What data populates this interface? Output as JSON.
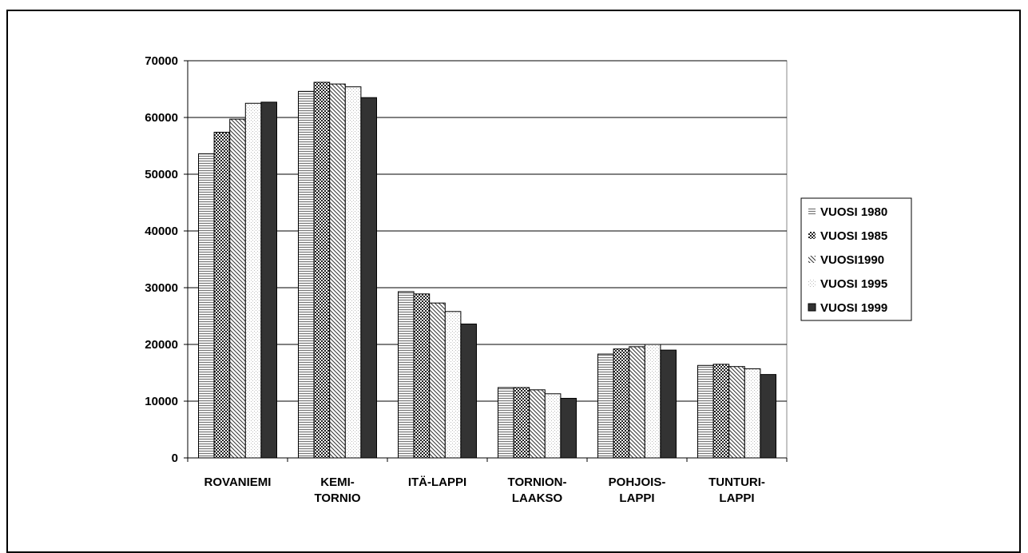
{
  "chart_data": {
    "type": "bar",
    "categories": [
      [
        "ROVANIEMI"
      ],
      [
        "KEMI-",
        "TORNIO"
      ],
      [
        "ITÄ-LAPPI"
      ],
      [
        "TORNION-",
        "LAAKSO"
      ],
      [
        "POHJOIS-",
        "LAPPI"
      ],
      [
        "TUNTURI-",
        "LAPPI"
      ]
    ],
    "series": [
      {
        "name": "VUOSI 1980",
        "pattern": "hlines",
        "values": [
          53600,
          64600,
          29300,
          12400,
          18300,
          16300
        ]
      },
      {
        "name": "VUOSI 1985",
        "pattern": "checker",
        "values": [
          57400,
          66200,
          28900,
          12400,
          19200,
          16500
        ]
      },
      {
        "name": "VUOSI1990",
        "pattern": "diagonal",
        "values": [
          59700,
          65900,
          27300,
          12000,
          19600,
          16100
        ]
      },
      {
        "name": "VUOSI 1995",
        "pattern": "dots",
        "values": [
          62500,
          65400,
          25800,
          11300,
          20000,
          15700
        ]
      },
      {
        "name": "VUOSI 1999",
        "pattern": "solid",
        "values": [
          62700,
          63500,
          23600,
          10500,
          19000,
          14700
        ]
      }
    ],
    "ylim": [
      0,
      70000
    ],
    "yticks": [
      "0",
      "10000",
      "20000",
      "30000",
      "40000",
      "50000",
      "60000",
      "70000"
    ],
    "grid": true,
    "legend": "right",
    "colors": {
      "solid": "#333333",
      "light": "#f0f0f0",
      "line": "#000000"
    }
  }
}
